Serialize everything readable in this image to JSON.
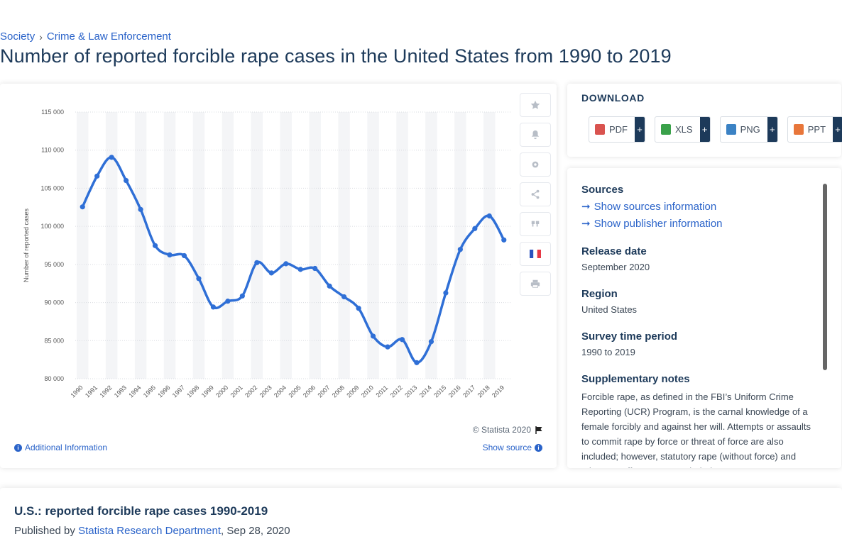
{
  "breadcrumb": {
    "item1": "Society",
    "item2": "Crime & Law Enforcement"
  },
  "page_title": "Number of reported forcible rape cases in the United States from 1990 to 2019",
  "chart_data": {
    "type": "line",
    "title": "",
    "xlabel": "",
    "ylabel": "Number of reported cases",
    "categories": [
      "1990",
      "1991",
      "1992",
      "1993",
      "1994",
      "1995",
      "1996",
      "1997",
      "1998",
      "1999",
      "2000",
      "2001",
      "2002",
      "2003",
      "2004",
      "2005",
      "2006",
      "2007",
      "2008",
      "2009",
      "2010",
      "2011",
      "2012",
      "2013",
      "2014",
      "2015",
      "2016",
      "2017",
      "2018",
      "2019"
    ],
    "series": [
      {
        "name": "",
        "values": [
          102555,
          106593,
          109062,
          106014,
          102216,
          97470,
          96252,
          96153,
          93144,
          89411,
          90178,
          90863,
          95235,
          93883,
          95089,
          94347,
          94472,
          92160,
          90750,
          89241,
          85593,
          84175,
          85141,
          82109,
          84864,
          91261,
          96970,
          99708,
          101363,
          98213
        ]
      }
    ],
    "ylim": [
      80000,
      115000
    ],
    "yticks": [
      80000,
      85000,
      90000,
      95000,
      100000,
      105000,
      110000,
      115000
    ],
    "ytick_labels": [
      "80 000",
      "85 000",
      "90 000",
      "95 000",
      "100 000",
      "105 000",
      "110 000",
      "115 000"
    ],
    "grid": true,
    "line_color": "#2f6fd6"
  },
  "chart_meta": {
    "copyright": "© Statista 2020",
    "additional_info": "Additional Information",
    "show_source": "Show source"
  },
  "download": {
    "title": "DOWNLOAD",
    "buttons": [
      {
        "label": "PDF",
        "plus": "+",
        "color": "#d9534f"
      },
      {
        "label": "XLS",
        "plus": "+",
        "color": "#3aa14a"
      },
      {
        "label": "PNG",
        "plus": "+",
        "color": "#3b82c4"
      },
      {
        "label": "PPT",
        "plus": "+",
        "color": "#e8763a"
      }
    ]
  },
  "info": {
    "sources_heading": "Sources",
    "sources_link": "Show sources information",
    "publisher_link": "Show publisher information",
    "release_heading": "Release date",
    "release_value": "September 2020",
    "region_heading": "Region",
    "region_value": "United States",
    "survey_heading": "Survey time period",
    "survey_value": "1990 to 2019",
    "notes_heading": "Supplementary notes",
    "notes_text": "Forcible rape, as defined in the FBI’s Uniform Crime Reporting (UCR) Program, is the carnal knowledge of a female forcibly and against her will. Attempts or assaults to commit rape by force or threat of force are also included; however, statutory rape (without force) and other sex offenses are excluded."
  },
  "bottom": {
    "title": "U.S.: reported forcible rape cases 1990-2019",
    "published_by": "Published by",
    "publisher": "Statista Research Department",
    "date": ", Sep 28, 2020"
  }
}
